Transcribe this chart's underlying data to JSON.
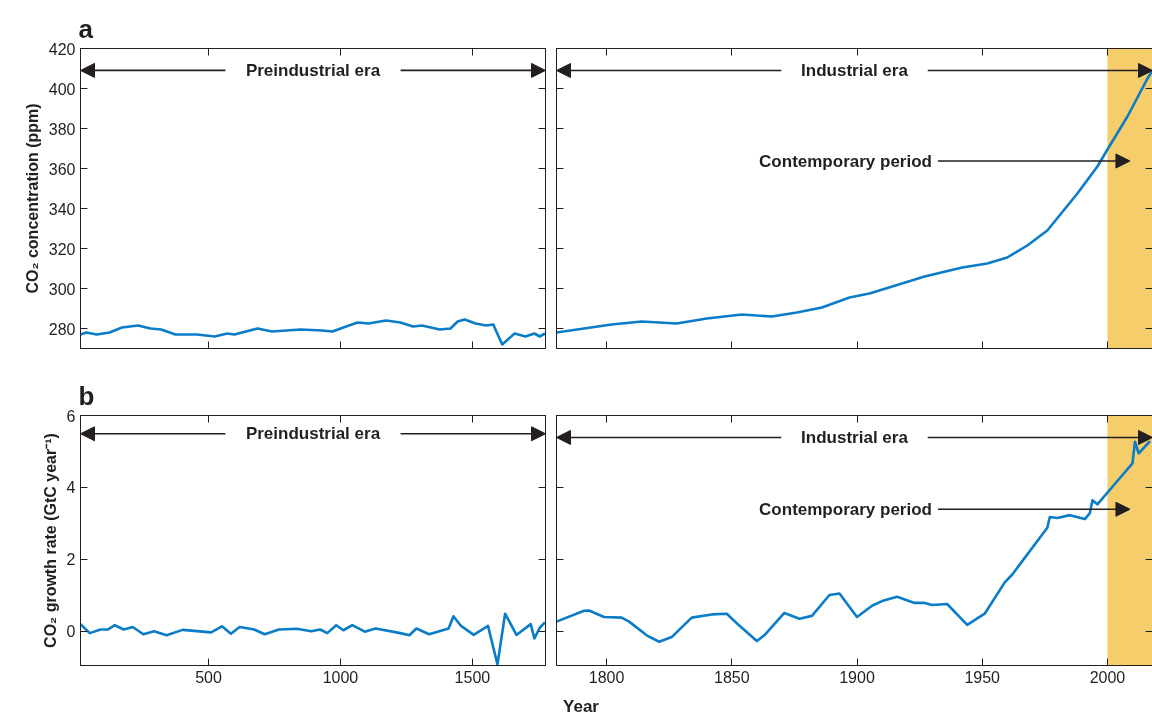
{
  "chart_data": [
    {
      "type": "line",
      "title": "a",
      "ylabel": "CO₂ concentration (ppm)",
      "color": "#0a7cc8",
      "xlim": [
        15,
        1777
      ],
      "ylim": [
        270,
        420
      ],
      "xticks": [
        500,
        1000,
        1500
      ],
      "yticks": [
        280,
        300,
        320,
        340,
        360,
        380,
        400,
        420
      ],
      "tick_labels": "y",
      "x": [
        15,
        37,
        77,
        125,
        172,
        233,
        280,
        321,
        375,
        456,
        524,
        571,
        598,
        686,
        740,
        849,
        930,
        970,
        1011,
        1065,
        1106,
        1173,
        1227,
        1275,
        1309,
        1376,
        1417,
        1444,
        1471,
        1512,
        1552,
        1579,
        1613,
        1660,
        1701,
        1735,
        1755,
        1775
      ],
      "values": [
        277,
        278,
        277,
        278,
        280.5,
        281.5,
        280,
        279.5,
        277,
        277,
        276,
        277.5,
        277,
        280,
        278.5,
        279.5,
        279,
        278.5,
        280.5,
        283,
        282.5,
        284,
        283,
        281,
        281.5,
        279.5,
        280,
        283.5,
        284.5,
        282.5,
        281.5,
        282,
        272,
        277.5,
        276,
        277.5,
        276,
        277.5
      ],
      "annotations": [
        "Preindustrial era"
      ]
    },
    {
      "type": "line",
      "color": "#0a7cc8",
      "xlim": [
        1780,
        2018
      ],
      "ylim": [
        270,
        420
      ],
      "xticks": [
        1800,
        1850,
        1900,
        1950,
        2000
      ],
      "yticks": [
        280,
        300,
        320,
        340,
        360,
        380,
        400,
        420
      ],
      "tick_labels": false,
      "x": [
        1780,
        1791,
        1802,
        1814,
        1828,
        1840,
        1854,
        1866,
        1876,
        1886,
        1897,
        1905,
        1927,
        1942,
        1952,
        1960,
        1968,
        1976,
        1988,
        1996,
        2000,
        2008,
        2016,
        2018
      ],
      "values": [
        278,
        280,
        282,
        283.5,
        282.5,
        285,
        287,
        286,
        288,
        290.5,
        295.5,
        297.5,
        306,
        310.5,
        312.5,
        315.5,
        321.5,
        329,
        347.5,
        361,
        369.5,
        386,
        405,
        409
      ],
      "bands": [
        {
          "axis": "x",
          "from": 2000,
          "to": 2018,
          "color": "#f5cd6a"
        }
      ],
      "annotations": [
        {
          "text": "Industrial era",
          "x": 2018,
          "y": 409
        },
        "Contemporary period"
      ]
    },
    {
      "type": "line",
      "title": "b",
      "ylabel": "CO₂ growth rate (GtC year⁻¹)",
      "xlabel": "Year",
      "color": "#0a7cc8",
      "xlim": [
        15,
        1777
      ],
      "ylim": [
        -0.95,
        6
      ],
      "xticks": [
        500,
        1000,
        1500
      ],
      "yticks": [
        0,
        2,
        4,
        6
      ],
      "x": [
        15,
        50,
        91,
        118,
        145,
        179,
        213,
        253,
        294,
        341,
        402,
        510,
        551,
        585,
        618,
        673,
        713,
        767,
        835,
        889,
        923,
        950,
        984,
        1011,
        1045,
        1092,
        1133,
        1227,
        1261,
        1288,
        1336,
        1410,
        1428,
        1457,
        1505,
        1559,
        1595,
        1624,
        1667,
        1721,
        1735,
        1755,
        1775
      ],
      "values": [
        0.2,
        -0.05,
        0.05,
        0.05,
        0.17,
        0.05,
        0.12,
        -0.08,
        0,
        -0.11,
        0.04,
        -0.03,
        0.14,
        -0.07,
        0.12,
        0.05,
        -0.08,
        0.05,
        0.07,
        0,
        0.05,
        -0.05,
        0.17,
        0.03,
        0.17,
        -0.01,
        0.08,
        -0.05,
        -0.11,
        0.08,
        -0.08,
        0.08,
        0.42,
        0.15,
        -0.1,
        0.15,
        -0.92,
        0.49,
        -0.1,
        0.2,
        -0.2,
        0.1,
        0.25
      ],
      "annotations": [
        "Preindustrial era"
      ]
    },
    {
      "type": "line",
      "color": "#0a7cc8",
      "xlim": [
        1780,
        2018
      ],
      "ylim": [
        -0.95,
        6
      ],
      "xticks": [
        1800,
        1850,
        1900,
        1950,
        2000
      ],
      "yticks": [
        0,
        2,
        4,
        6
      ],
      "tick_labels": "x",
      "x": [
        1780,
        1791,
        1793,
        1799,
        1806,
        1809,
        1816,
        1821,
        1826,
        1834,
        1842,
        1848,
        1853,
        1860,
        1863,
        1871,
        1877,
        1882,
        1889,
        1893,
        1900,
        1906,
        1910,
        1916,
        1923,
        1927,
        1930,
        1936,
        1944,
        1951,
        1959,
        1962,
        1976,
        1977,
        1980,
        1985,
        1991,
        1993,
        1994,
        1996,
        2002,
        2010,
        2011,
        2012.5,
        2017
      ],
      "values": [
        0.27,
        0.57,
        0.58,
        0.4,
        0.38,
        0.27,
        -0.11,
        -0.29,
        -0.16,
        0.38,
        0.47,
        0.49,
        0.16,
        -0.27,
        -0.11,
        0.51,
        0.35,
        0.43,
        1.01,
        1.05,
        0.4,
        0.71,
        0.84,
        0.96,
        0.79,
        0.79,
        0.73,
        0.76,
        0.18,
        0.49,
        1.36,
        1.58,
        2.88,
        3.18,
        3.15,
        3.23,
        3.12,
        3.29,
        3.64,
        3.53,
        4.02,
        4.67,
        5.27,
        4.95,
        5.29
      ],
      "bands": [
        {
          "axis": "x",
          "from": 2000,
          "to": 2018,
          "color": "#f5cd6a"
        }
      ],
      "annotations": [
        {
          "text": "Industrial era",
          "x": 2018,
          "y": 5.39
        },
        "Contemporary period"
      ]
    }
  ]
}
